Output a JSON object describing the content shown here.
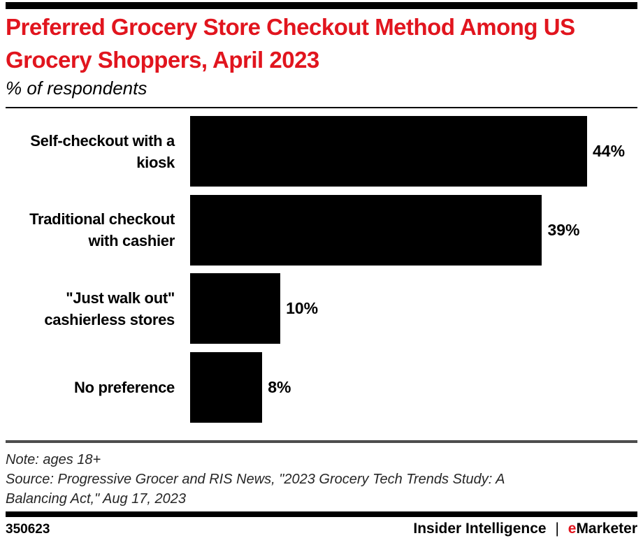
{
  "chart_data": {
    "type": "bar",
    "orientation": "horizontal",
    "title": "Preferred Grocery Store Checkout Method Among US Grocery Shoppers, April 2023",
    "subtitle": "% of respondents",
    "categories": [
      "Self-checkout with a kiosk",
      "Traditional checkout with cashier",
      "\"Just walk out\" cashierless stores",
      "No preference"
    ],
    "label_lines": [
      [
        "Self-checkout with a",
        "kiosk"
      ],
      [
        "Traditional checkout",
        "with cashier"
      ],
      [
        "\"Just walk out\"",
        "cashierless stores"
      ],
      [
        "No preference"
      ]
    ],
    "values": [
      44,
      39,
      10,
      8
    ],
    "value_labels": [
      "44%",
      "39%",
      "10%",
      "8%"
    ],
    "xlim": [
      0,
      44
    ],
    "bar_color": "#000000",
    "grid": false,
    "legend": false
  },
  "note": "Note: ages 18+",
  "source_lines": [
    "Source: Progressive Grocer and RIS News, \"2023 Grocery Tech Trends Study: A",
    "Balancing Act,\" Aug 17, 2023"
  ],
  "footer": {
    "chart_id": "350623",
    "brand_left": "Insider Intelligence",
    "brand_divider": "|",
    "brand_right_accent": "e",
    "brand_right_rest": "Marketer"
  },
  "colors": {
    "title_red": "#e1151e",
    "brand_accent_red": "#e1151e",
    "bar_black": "#000000",
    "rule_gray": "#4d4d4d"
  }
}
